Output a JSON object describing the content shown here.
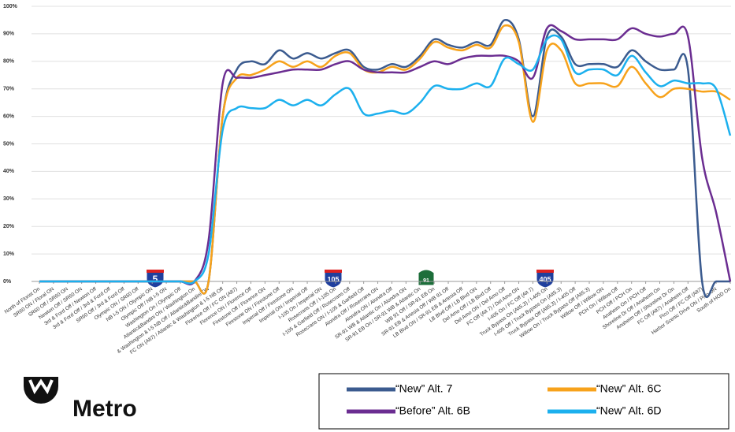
{
  "chart_data": {
    "type": "line",
    "categories": [
      "North of Florist On",
      "SR60 ON / Floral ON",
      "SR60 Off / SR60 ON",
      "Newton Off / SR60 ON",
      "3rd & Ford Off / Newton Off",
      "3rd & Ford Off / 3rd & Ford Off",
      "SR60 Off / 3rd & Ford Off",
      "Olympic ON / SR60 Off",
      "NB I-5 ON / Olympic ON",
      "Olympic Off / NB I-5 ON",
      "Washington On / Olympic Off",
      "Atlantic&Bandini ON / Washington On",
      "& Washington & I-5 NB Off / Atlantic&Bandini ON",
      "FC ON (Alt7) / Atlantic & Washington & I-5 NB Off",
      "Florence Off / FC ON (Alt7)",
      "Florence ON / Florence Off",
      "Firestone Off / Florence ON",
      "Firestone ON / Firestone Off",
      "Imperial Off / Firestone ON",
      "Imperial ON / Imperial Off",
      "I-105 On / Imperial ON",
      "Rosecrans Off / I-105 On",
      "I-105 & Garfield Off / Rosecrans Off",
      "Rosecrans ON / I-105 & Garfield Off",
      "Alondra Off / Rosecrans ON",
      "Alondra ON / Alondra Off",
      "SR-91 WB & Atlantic On / Alondra ON",
      "SR-91 EB On / SR-91 WB & Atlantic On",
      "WB 91 Off / SR-91 EB On",
      "SR-91 EB & Artesia Off / WB 91 Off",
      "LB Blvd ON / SR-91 EB & Artesia Off",
      "LB Blvd Off / LB Blvd ON",
      "Del Amo Off / LB Blvd Off",
      "Del Amo ON / Del Amo Off",
      "FC Off (Alt 7) / Del Amo ON",
      "I-405 On / FC Off (Alt 7)",
      "Truck Bypass On (Alt5.3) / I-405 On",
      "I-405 Off / Truck Bypass On (Alt5.3)",
      "Truck Bypass Off (Alt5.3) / I-405 Off",
      "Willow On / Truck Bypass Off (Alt5.3)",
      "Willow Off / Willow ON",
      "PCH On / Willow Off",
      "PCH Off / PCH On",
      "Anaheim On / PCH Off",
      "Shoreline Dr Off / Anaheim On",
      "Anaheim Off / Shoreline Dr On",
      "FC Off (Alt7) / Anaheim Off",
      "Pico Off / FC Off (Alt7)",
      "Harbor Scenic Drive ON / Pico ON",
      "South of HOD On"
    ],
    "series": [
      {
        "name": "“New” Alt. 7",
        "color": "#3b5b8f",
        "values": [
          0,
          0,
          0,
          0,
          0,
          0,
          0,
          0,
          0,
          0,
          0,
          0,
          0,
          60,
          77,
          80,
          79,
          84,
          81,
          83,
          81,
          83,
          84,
          78,
          77,
          79,
          78,
          82,
          88,
          86,
          85,
          87,
          86,
          95,
          88,
          60,
          89,
          89,
          79,
          79,
          79,
          78,
          84,
          80,
          77,
          77,
          77,
          0,
          0,
          0
        ]
      },
      {
        "name": "“New” Alt. 6C",
        "color": "#f7a21b",
        "values": [
          0,
          0,
          0,
          0,
          0,
          0,
          0,
          0,
          0,
          0,
          0,
          0,
          0,
          60,
          74,
          75,
          77,
          80,
          78,
          80,
          78,
          82,
          83,
          77,
          76,
          78,
          77,
          81,
          87,
          85,
          84,
          86,
          85,
          93,
          87,
          58,
          84,
          84,
          72,
          72,
          72,
          71,
          78,
          72,
          67,
          70,
          70,
          69,
          69,
          66
        ]
      },
      {
        "name": "“Before” Alt. 6B",
        "color": "#6b2d91",
        "values": [
          0,
          0,
          0,
          0,
          0,
          0,
          0,
          0,
          0,
          0,
          0,
          0,
          15,
          72,
          74,
          74,
          75,
          76,
          77,
          77,
          77,
          79,
          80,
          77,
          76,
          76,
          76,
          78,
          80,
          79,
          81,
          82,
          82,
          82,
          80,
          74,
          92,
          91,
          88,
          88,
          88,
          88,
          92,
          90,
          89,
          90,
          89,
          45,
          25,
          0
        ]
      },
      {
        "name": "“New” Alt. 6D",
        "color": "#1cb0ee",
        "values": [
          0,
          0,
          0,
          0,
          0,
          0,
          0,
          0,
          0,
          0,
          0,
          0,
          10,
          55,
          63,
          63,
          63,
          66,
          64,
          66,
          64,
          68,
          70,
          61,
          61,
          62,
          61,
          65,
          71,
          70,
          70,
          72,
          71,
          81,
          79,
          77,
          88,
          88,
          76,
          77,
          77,
          75,
          82,
          76,
          71,
          73,
          72,
          72,
          70,
          53
        ]
      }
    ],
    "ylim": [
      0,
      100
    ],
    "yticks": [
      {
        "value": 0,
        "label": "0%"
      },
      {
        "value": 10,
        "label": "10%"
      },
      {
        "value": 20,
        "label": "20%"
      },
      {
        "value": 30,
        "label": "30%"
      },
      {
        "value": 40,
        "label": "40%"
      },
      {
        "value": 50,
        "label": "50%"
      },
      {
        "value": 60,
        "label": "60%"
      },
      {
        "value": 70,
        "label": "70%"
      },
      {
        "value": 80,
        "label": "80%"
      },
      {
        "value": 90,
        "label": "90%"
      },
      {
        "value": 100,
        "label": "100%"
      }
    ],
    "grid": true
  },
  "shields": [
    "5",
    "105",
    "91",
    "405"
  ],
  "logo": "Metro"
}
